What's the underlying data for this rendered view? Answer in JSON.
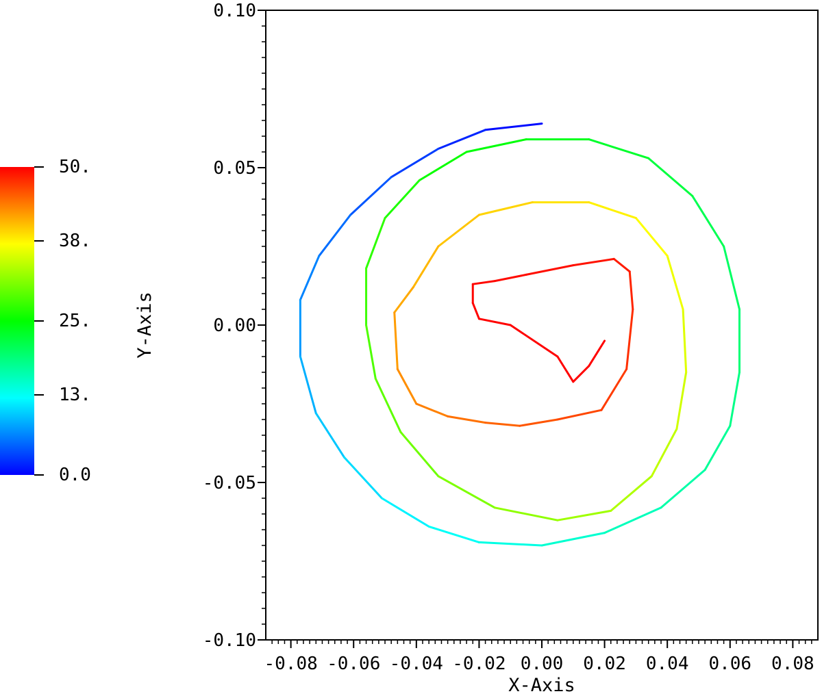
{
  "chart_data": {
    "type": "line",
    "xlabel": "X-Axis",
    "ylabel": "Y-Axis",
    "xlim": [
      -0.088,
      0.088
    ],
    "ylim": [
      -0.1,
      0.1
    ],
    "x_ticks": [
      -0.08,
      -0.06,
      -0.04,
      -0.02,
      0.0,
      0.02,
      0.04,
      0.06,
      0.08
    ],
    "x_tick_labels": [
      "-0.08",
      "-0.06",
      "-0.04",
      "-0.02",
      "0.00",
      "0.02",
      "0.04",
      "0.06",
      "0.08"
    ],
    "y_ticks": [
      0.1,
      0.05,
      0.0,
      -0.05,
      -0.1
    ],
    "y_tick_labels": [
      "0.10",
      "0.05",
      "0.00",
      "-0.05",
      "-0.10"
    ],
    "grid": false,
    "colorbar": {
      "min": 0,
      "max": 50,
      "ticks": [
        50,
        38,
        25,
        13,
        0
      ],
      "tick_labels": [
        "50.",
        "38.",
        "25.",
        "13.",
        "0.0"
      ],
      "colormap": [
        "#0000ff",
        "#00ffff",
        "#00ff00",
        "#ffff00",
        "#ff0000"
      ]
    },
    "series": [
      {
        "color_by": "time",
        "points": [
          {
            "x": 0.0,
            "y": 0.064,
            "t": 0.0
          },
          {
            "x": -0.018,
            "y": 0.062,
            "t": 1.2
          },
          {
            "x": -0.033,
            "y": 0.056,
            "t": 2.4
          },
          {
            "x": -0.048,
            "y": 0.047,
            "t": 3.6
          },
          {
            "x": -0.061,
            "y": 0.035,
            "t": 4.8
          },
          {
            "x": -0.071,
            "y": 0.022,
            "t": 5.9
          },
          {
            "x": -0.077,
            "y": 0.008,
            "t": 6.9
          },
          {
            "x": -0.077,
            "y": -0.01,
            "t": 8.1
          },
          {
            "x": -0.072,
            "y": -0.028,
            "t": 9.2
          },
          {
            "x": -0.063,
            "y": -0.042,
            "t": 10.3
          },
          {
            "x": -0.051,
            "y": -0.055,
            "t": 11.4
          },
          {
            "x": -0.036,
            "y": -0.064,
            "t": 12.4
          },
          {
            "x": -0.02,
            "y": -0.069,
            "t": 13.3
          },
          {
            "x": 0.0,
            "y": -0.07,
            "t": 14.3
          },
          {
            "x": 0.02,
            "y": -0.066,
            "t": 15.3
          },
          {
            "x": 0.038,
            "y": -0.058,
            "t": 16.3
          },
          {
            "x": 0.052,
            "y": -0.046,
            "t": 17.2
          },
          {
            "x": 0.06,
            "y": -0.032,
            "t": 18.0
          },
          {
            "x": 0.063,
            "y": -0.015,
            "t": 18.8
          },
          {
            "x": 0.063,
            "y": 0.005,
            "t": 19.7
          },
          {
            "x": 0.058,
            "y": 0.025,
            "t": 20.6
          },
          {
            "x": 0.048,
            "y": 0.041,
            "t": 21.5
          },
          {
            "x": 0.034,
            "y": 0.053,
            "t": 22.4
          },
          {
            "x": 0.015,
            "y": 0.059,
            "t": 23.3
          },
          {
            "x": -0.005,
            "y": 0.059,
            "t": 24.1
          },
          {
            "x": -0.024,
            "y": 0.055,
            "t": 25.0
          },
          {
            "x": -0.039,
            "y": 0.046,
            "t": 25.9
          },
          {
            "x": -0.05,
            "y": 0.034,
            "t": 26.8
          },
          {
            "x": -0.056,
            "y": 0.018,
            "t": 27.6
          },
          {
            "x": -0.056,
            "y": 0.0,
            "t": 28.4
          },
          {
            "x": -0.053,
            "y": -0.017,
            "t": 29.2
          },
          {
            "x": -0.045,
            "y": -0.034,
            "t": 30.0
          },
          {
            "x": -0.033,
            "y": -0.048,
            "t": 30.8
          },
          {
            "x": -0.015,
            "y": -0.058,
            "t": 31.6
          },
          {
            "x": 0.005,
            "y": -0.062,
            "t": 32.4
          },
          {
            "x": 0.022,
            "y": -0.059,
            "t": 33.2
          },
          {
            "x": 0.035,
            "y": -0.048,
            "t": 34.0
          },
          {
            "x": 0.043,
            "y": -0.033,
            "t": 34.8
          },
          {
            "x": 0.046,
            "y": -0.015,
            "t": 35.6
          },
          {
            "x": 0.045,
            "y": 0.005,
            "t": 36.3
          },
          {
            "x": 0.04,
            "y": 0.022,
            "t": 37.0
          },
          {
            "x": 0.03,
            "y": 0.034,
            "t": 37.8
          },
          {
            "x": 0.015,
            "y": 0.039,
            "t": 38.5
          },
          {
            "x": -0.003,
            "y": 0.039,
            "t": 39.2
          },
          {
            "x": -0.02,
            "y": 0.035,
            "t": 40.0
          },
          {
            "x": -0.033,
            "y": 0.025,
            "t": 40.7
          },
          {
            "x": -0.041,
            "y": 0.012,
            "t": 41.4
          },
          {
            "x": -0.047,
            "y": 0.004,
            "t": 42.0
          },
          {
            "x": -0.046,
            "y": -0.014,
            "t": 42.7
          },
          {
            "x": -0.04,
            "y": -0.025,
            "t": 43.4
          },
          {
            "x": -0.03,
            "y": -0.029,
            "t": 44.1
          },
          {
            "x": -0.018,
            "y": -0.031,
            "t": 44.8
          },
          {
            "x": -0.007,
            "y": -0.032,
            "t": 45.5
          },
          {
            "x": 0.005,
            "y": -0.03,
            "t": 46.2
          },
          {
            "x": 0.019,
            "y": -0.027,
            "t": 46.8
          },
          {
            "x": 0.027,
            "y": -0.014,
            "t": 47.4
          },
          {
            "x": 0.029,
            "y": 0.005,
            "t": 48.0
          },
          {
            "x": 0.028,
            "y": 0.017,
            "t": 48.5
          },
          {
            "x": 0.023,
            "y": 0.021,
            "t": 48.9
          },
          {
            "x": 0.01,
            "y": 0.019,
            "t": 49.2
          },
          {
            "x": -0.005,
            "y": 0.016,
            "t": 49.4
          },
          {
            "x": -0.015,
            "y": 0.014,
            "t": 49.6
          },
          {
            "x": -0.022,
            "y": 0.013,
            "t": 49.7
          },
          {
            "x": -0.022,
            "y": 0.007,
            "t": 49.8
          },
          {
            "x": -0.02,
            "y": 0.002,
            "t": 49.9
          },
          {
            "x": -0.01,
            "y": 0.0,
            "t": 49.95
          },
          {
            "x": 0.005,
            "y": -0.01,
            "t": 49.98
          },
          {
            "x": 0.01,
            "y": -0.018,
            "t": 50.0
          },
          {
            "x": 0.015,
            "y": -0.013,
            "t": 50.0
          },
          {
            "x": 0.02,
            "y": -0.005,
            "t": 50.0
          }
        ]
      }
    ]
  }
}
